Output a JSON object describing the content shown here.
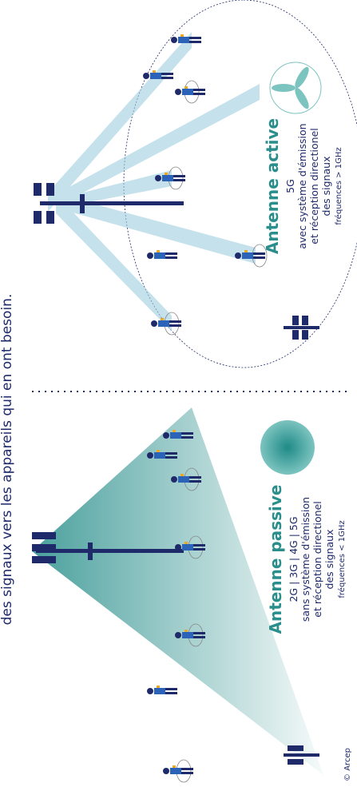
{
  "header": {
    "title": "des signaux vers les appareils qui en ont besoin."
  },
  "passive": {
    "title": "Antenne passive",
    "lines": [
      "2G | 3G | 4G | 5G",
      "sans système d'émission",
      "et réception directionel",
      "des signaux",
      "fréquences < 1GHz"
    ]
  },
  "active": {
    "title": "Antenne active",
    "lines": [
      "5G",
      "avec système d'émission",
      "et réception directionel",
      "des signaux",
      "fréquences > 1GHz"
    ]
  },
  "credit": "© Arcep"
}
